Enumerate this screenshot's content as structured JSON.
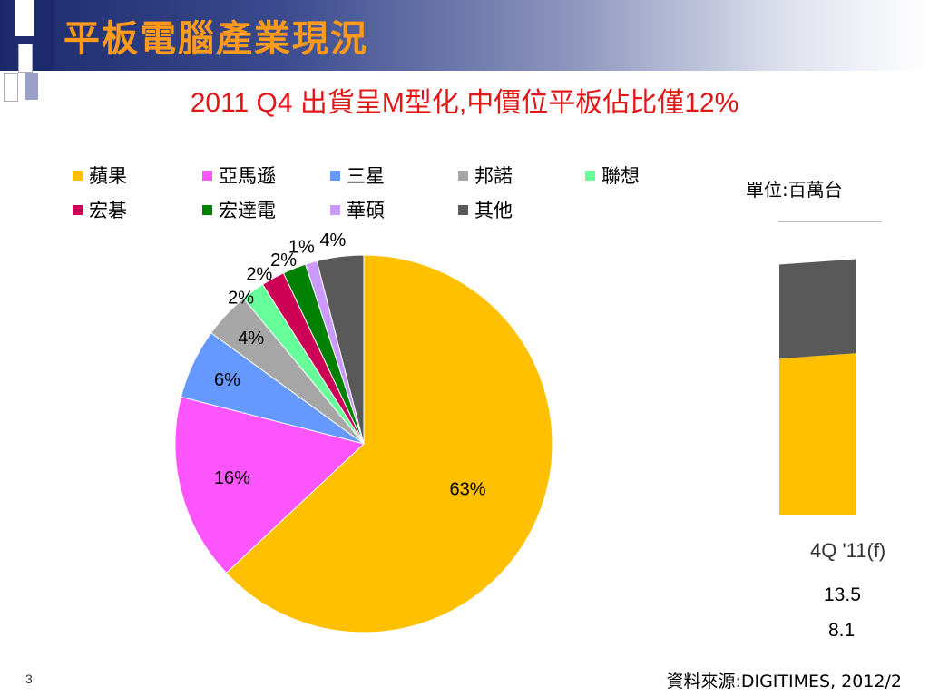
{
  "slide": {
    "title": "平板電腦產業現況",
    "subtitle": "2011 Q4 出貨呈M型化,中價位平板佔比僅12%",
    "unit": "單位:百萬台",
    "page_number": "3",
    "source": "資料來源:DIGITIMES, 2012/2"
  },
  "chart_data": [
    {
      "type": "pie",
      "labels": [
        "蘋果",
        "亞馬遜",
        "三星",
        "邦諾",
        "聯想",
        "宏碁",
        "宏達電",
        "華碩",
        "其他"
      ],
      "values": [
        63,
        16,
        6,
        4,
        2,
        2,
        2,
        1,
        4
      ],
      "value_labels": [
        "63%",
        "16%",
        "6%",
        "4%",
        "2%",
        "2%",
        "2%",
        "1%",
        "4%"
      ],
      "colors": [
        "#ffc000",
        "#ff55ff",
        "#6699ff",
        "#a6a6a6",
        "#66ff99",
        "#cc0055",
        "#008000",
        "#cc99ff",
        "#595959"
      ],
      "legend_position": "top"
    },
    {
      "type": "bar",
      "stacked": true,
      "categories": [
        "4Q '11(f)"
      ],
      "series": [
        {
          "values": [
            13.5
          ],
          "color": "#ffc000"
        },
        {
          "values": [
            8.1
          ],
          "color": "#595959"
        }
      ],
      "value_labels": [
        "13.5",
        "8.1"
      ],
      "gridline": true
    }
  ]
}
